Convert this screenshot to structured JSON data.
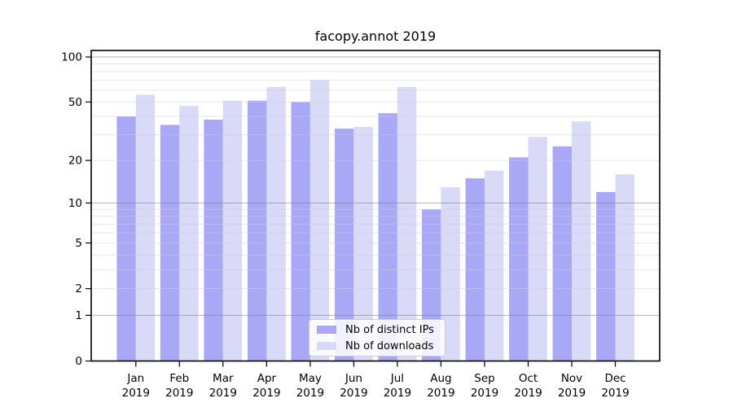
{
  "chart_data": {
    "type": "bar",
    "title": "facopy.annot 2019",
    "categories": [
      "Jan",
      "Feb",
      "Mar",
      "Apr",
      "May",
      "Jun",
      "Jul",
      "Aug",
      "Sep",
      "Oct",
      "Nov",
      "Dec"
    ],
    "year": "2019",
    "series": [
      {
        "name": "Nb of distinct IPs",
        "color": "#a8a8f7",
        "values": [
          40,
          35,
          38,
          51,
          50,
          33,
          42,
          9,
          15,
          21,
          25,
          12
        ]
      },
      {
        "name": "Nb of downloads",
        "color": "#d9d9f8",
        "values": [
          56,
          47,
          51,
          63,
          70,
          34,
          63,
          13,
          17,
          29,
          37,
          16
        ]
      }
    ],
    "xlabel": "",
    "ylabel": "",
    "yscale": "log1p",
    "ylim": [
      0,
      110.5
    ],
    "yticks": [
      0,
      1,
      2,
      5,
      10,
      20,
      50,
      100
    ],
    "grid": {
      "major": [
        1,
        10,
        100
      ],
      "minor": [
        2,
        3,
        4,
        5,
        6,
        7,
        8,
        9,
        20,
        30,
        40,
        50,
        60,
        70,
        80,
        90
      ]
    },
    "legend_position": "lower center"
  }
}
